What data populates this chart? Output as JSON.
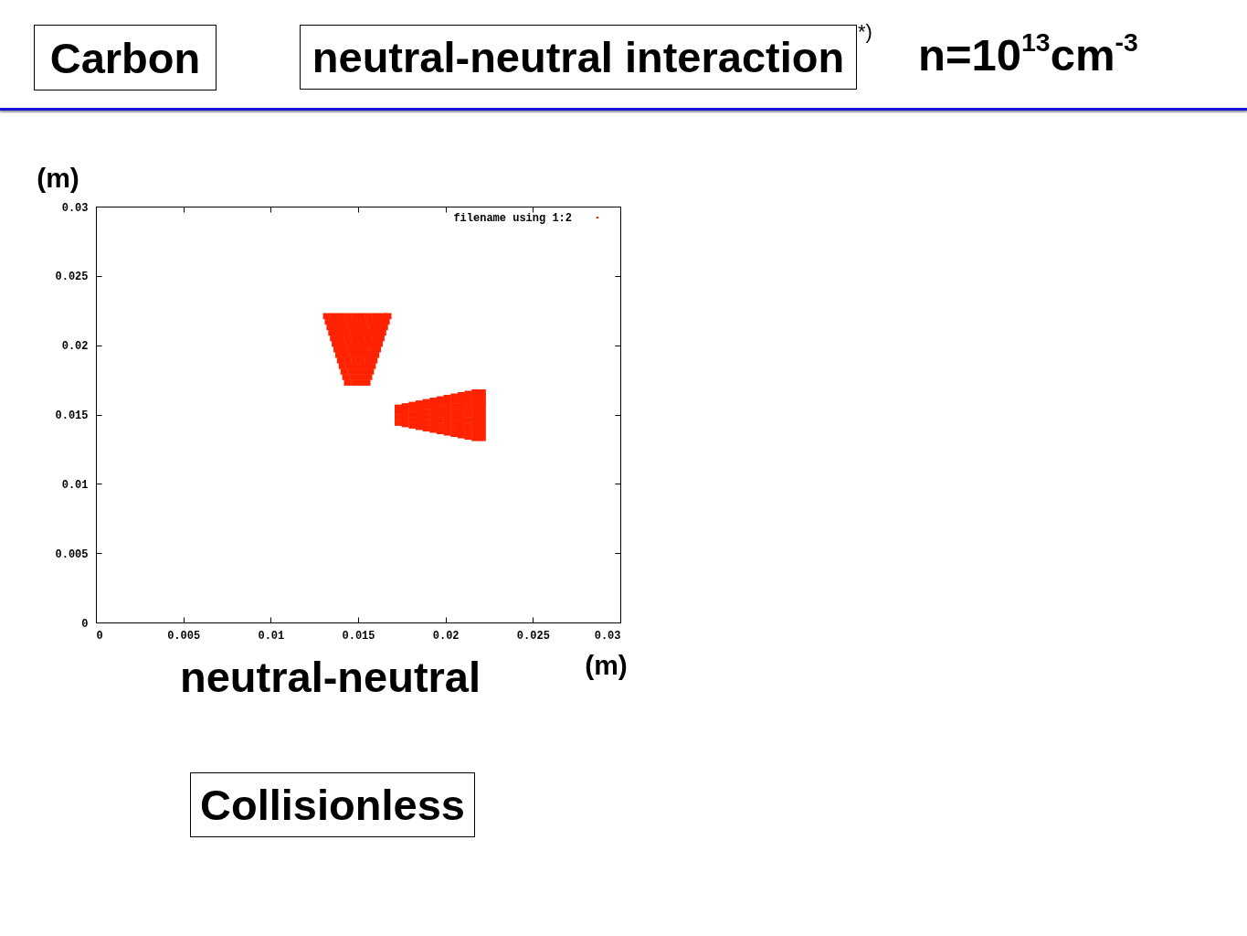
{
  "chart_data": {
    "type": "scatter",
    "title": "Carbon",
    "subtitle": "neutral-neutral interaction",
    "annotations": [
      "*)",
      "n=10$^{13}$cm$^{-3}$",
      "neutral-neutral",
      "Collisionless"
    ],
    "xlabel": "(m)",
    "ylabel": "(m)",
    "xlim": [
      0,
      0.03
    ],
    "ylim": [
      0,
      0.03
    ],
    "xticks": [
      0,
      0.005,
      0.01,
      0.015,
      0.02,
      0.025,
      0.03
    ],
    "yticks": [
      0,
      0.005,
      0.01,
      0.015,
      0.02,
      0.025,
      0.03
    ],
    "legend": "top right",
    "marker": "square",
    "series": [
      {
        "name": "filename using 1:2",
        "color": "#ff2200",
        "x": [
          0.0144,
          0.0148,
          0.0152,
          0.0155,
          0.0143,
          0.0147,
          0.015,
          0.0153,
          0.0156,
          0.0142,
          0.0146,
          0.015,
          0.0154,
          0.0157,
          0.0141,
          0.0145,
          0.0149,
          0.0152,
          0.0155,
          0.0158,
          0.014,
          0.0144,
          0.0148,
          0.0152,
          0.0156,
          0.0159,
          0.0139,
          0.0143,
          0.0147,
          0.0151,
          0.0154,
          0.0157,
          0.016,
          0.0138,
          0.0142,
          0.0146,
          0.015,
          0.0154,
          0.0158,
          0.0161,
          0.0137,
          0.0141,
          0.0145,
          0.0149,
          0.0153,
          0.0156,
          0.0159,
          0.0162,
          0.0136,
          0.014,
          0.0144,
          0.0148,
          0.0152,
          0.0156,
          0.016,
          0.0163,
          0.0135,
          0.0139,
          0.0143,
          0.0147,
          0.0151,
          0.0155,
          0.0158,
          0.0161,
          0.0164,
          0.0134,
          0.0138,
          0.0142,
          0.0146,
          0.015,
          0.0154,
          0.0158,
          0.0162,
          0.0165,
          0.0133,
          0.0137,
          0.0141,
          0.0145,
          0.0149,
          0.0153,
          0.0157,
          0.016,
          0.0163,
          0.0166,
          0.0132,
          0.0136,
          0.014,
          0.0144,
          0.0148,
          0.0152,
          0.0156,
          0.016,
          0.0164,
          0.0167,
          0.0173,
          0.0173,
          0.0173,
          0.0173,
          0.0177,
          0.0177,
          0.0177,
          0.0177,
          0.0177,
          0.0181,
          0.0181,
          0.0181,
          0.0181,
          0.0181,
          0.0185,
          0.0185,
          0.0185,
          0.0185,
          0.0185,
          0.0185,
          0.0189,
          0.0189,
          0.0189,
          0.0189,
          0.0189,
          0.0189,
          0.0193,
          0.0193,
          0.0193,
          0.0193,
          0.0193,
          0.0193,
          0.0193,
          0.0197,
          0.0197,
          0.0197,
          0.0197,
          0.0197,
          0.0197,
          0.0197,
          0.0201,
          0.0201,
          0.0201,
          0.0201,
          0.0201,
          0.0201,
          0.0201,
          0.0201,
          0.0205,
          0.0205,
          0.0205,
          0.0205,
          0.0205,
          0.0205,
          0.0205,
          0.0205,
          0.0209,
          0.0209,
          0.0209,
          0.0209,
          0.0209,
          0.0209,
          0.0209,
          0.0209,
          0.0209,
          0.0213,
          0.0213,
          0.0213,
          0.0213,
          0.0213,
          0.0213,
          0.0213,
          0.0213,
          0.0213,
          0.0217,
          0.0217,
          0.0217,
          0.0217,
          0.0217,
          0.0217,
          0.0217,
          0.0217,
          0.0217,
          0.0217,
          0.0221,
          0.0221,
          0.0221,
          0.0221,
          0.0221,
          0.0221,
          0.0221,
          0.0221,
          0.0221,
          0.0221
        ],
        "values": [
          0.0173,
          0.0173,
          0.0173,
          0.0173,
          0.0177,
          0.0177,
          0.0177,
          0.0177,
          0.0177,
          0.0181,
          0.0181,
          0.0181,
          0.0181,
          0.0181,
          0.0185,
          0.0185,
          0.0185,
          0.0185,
          0.0185,
          0.0185,
          0.0189,
          0.0189,
          0.0189,
          0.0189,
          0.0189,
          0.0189,
          0.0193,
          0.0193,
          0.0193,
          0.0193,
          0.0193,
          0.0193,
          0.0193,
          0.0197,
          0.0197,
          0.0197,
          0.0197,
          0.0197,
          0.0197,
          0.0197,
          0.0201,
          0.0201,
          0.0201,
          0.0201,
          0.0201,
          0.0201,
          0.0201,
          0.0201,
          0.0205,
          0.0205,
          0.0205,
          0.0205,
          0.0205,
          0.0205,
          0.0205,
          0.0205,
          0.0209,
          0.0209,
          0.0209,
          0.0209,
          0.0209,
          0.0209,
          0.0209,
          0.0209,
          0.0209,
          0.0213,
          0.0213,
          0.0213,
          0.0213,
          0.0213,
          0.0213,
          0.0213,
          0.0213,
          0.0213,
          0.0217,
          0.0217,
          0.0217,
          0.0217,
          0.0217,
          0.0217,
          0.0217,
          0.0217,
          0.0217,
          0.0217,
          0.0221,
          0.0221,
          0.0221,
          0.0221,
          0.0221,
          0.0221,
          0.0221,
          0.0221,
          0.0221,
          0.0221,
          0.0144,
          0.0148,
          0.0152,
          0.0155,
          0.0143,
          0.0147,
          0.015,
          0.0153,
          0.0156,
          0.0142,
          0.0146,
          0.015,
          0.0154,
          0.0157,
          0.0141,
          0.0145,
          0.0149,
          0.0152,
          0.0155,
          0.0158,
          0.014,
          0.0144,
          0.0148,
          0.0152,
          0.0156,
          0.0159,
          0.0139,
          0.0143,
          0.0147,
          0.0151,
          0.0154,
          0.0157,
          0.016,
          0.0138,
          0.0142,
          0.0146,
          0.015,
          0.0154,
          0.0158,
          0.0161,
          0.0137,
          0.0141,
          0.0145,
          0.0149,
          0.0153,
          0.0156,
          0.0159,
          0.0162,
          0.0136,
          0.014,
          0.0144,
          0.0148,
          0.0152,
          0.0156,
          0.016,
          0.0163,
          0.0135,
          0.0139,
          0.0143,
          0.0147,
          0.0151,
          0.0155,
          0.0158,
          0.0161,
          0.0164,
          0.0134,
          0.0138,
          0.0142,
          0.0146,
          0.015,
          0.0154,
          0.0158,
          0.0162,
          0.0165,
          0.0133,
          0.0137,
          0.0141,
          0.0145,
          0.0149,
          0.0153,
          0.0157,
          0.016,
          0.0163,
          0.0166,
          0.0133,
          0.0137,
          0.0141,
          0.0145,
          0.0149,
          0.0153,
          0.0157,
          0.016,
          0.0163,
          0.0166
        ]
      }
    ]
  }
}
